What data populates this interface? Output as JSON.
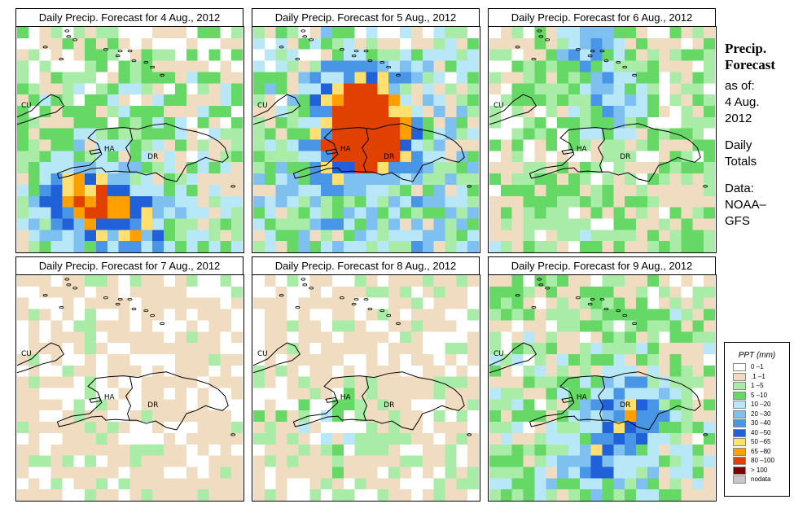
{
  "panels": [
    {
      "title": "Daily Precip. Forecast for  4 Aug., 2012",
      "seed": 4,
      "wet": 1.0,
      "hot": [
        [
          15,
          6,
          4.2
        ],
        [
          17,
          10,
          3.5
        ],
        [
          14,
          3,
          2.0
        ]
      ]
    },
    {
      "title": "Daily Precip. Forecast for  5 Aug., 2012",
      "seed": 5,
      "wet": 1.6,
      "hot": [
        [
          8,
          9,
          6.5
        ],
        [
          10,
          11,
          5.0
        ],
        [
          5,
          9,
          3.0
        ],
        [
          11,
          7,
          2.5
        ]
      ]
    },
    {
      "title": "Daily Precip. Forecast for  6 Aug., 2012",
      "seed": 6,
      "wet": 0.7,
      "hot": [
        [
          1,
          8,
          2.5
        ],
        [
          6,
          10,
          2.0
        ]
      ]
    },
    {
      "title": "Daily Precip. Forecast for  7 Aug., 2012",
      "seed": 7,
      "wet": 0.2,
      "hot": []
    },
    {
      "title": "Daily Precip. Forecast for  8 Aug., 2012",
      "seed": 8,
      "wet": 0.4,
      "hot": [
        [
          13,
          6,
          1.5
        ]
      ]
    },
    {
      "title": "Daily Precip. Forecast for  9 Aug., 2012",
      "seed": 9,
      "wet": 1.0,
      "hot": [
        [
          12,
          12,
          3.8
        ],
        [
          16,
          9,
          2.5
        ]
      ]
    }
  ],
  "map_labels": [
    "CU",
    "HA",
    "DR"
  ],
  "side": {
    "l1": "Precip.",
    "l2": "Forecast",
    "l3": "as of:",
    "l4": "4 Aug.",
    "l5": "2012",
    "l6": "Daily",
    "l7": "Totals",
    "l8": "Data:",
    "l9": "NOAA–",
    "l10": "GFS"
  },
  "legend": {
    "title": "PPT (mm)",
    "items": [
      {
        "range": "0 –1",
        "color": "#ffffff"
      },
      {
        "range": ".1 –1",
        "color": "#f0dcc0"
      },
      {
        "range": "1 –5",
        "color": "#a8eca8"
      },
      {
        "range": "5 –10",
        "color": "#66d866"
      },
      {
        "range": "10 –20",
        "color": "#b8e8f8"
      },
      {
        "range": "20 –30",
        "color": "#7ec0f0"
      },
      {
        "range": "30 –40",
        "color": "#4a96e6"
      },
      {
        "range": "40 –50",
        "color": "#2060d8"
      },
      {
        "range": "50 –65",
        "color": "#ffe070"
      },
      {
        "range": "65 –80",
        "color": "#ffa000"
      },
      {
        "range": "80 –100",
        "color": "#e04000"
      },
      {
        "range": "> 100",
        "color": "#800000"
      },
      {
        "range": "nodata",
        "color": "#c8c8c8"
      }
    ]
  }
}
